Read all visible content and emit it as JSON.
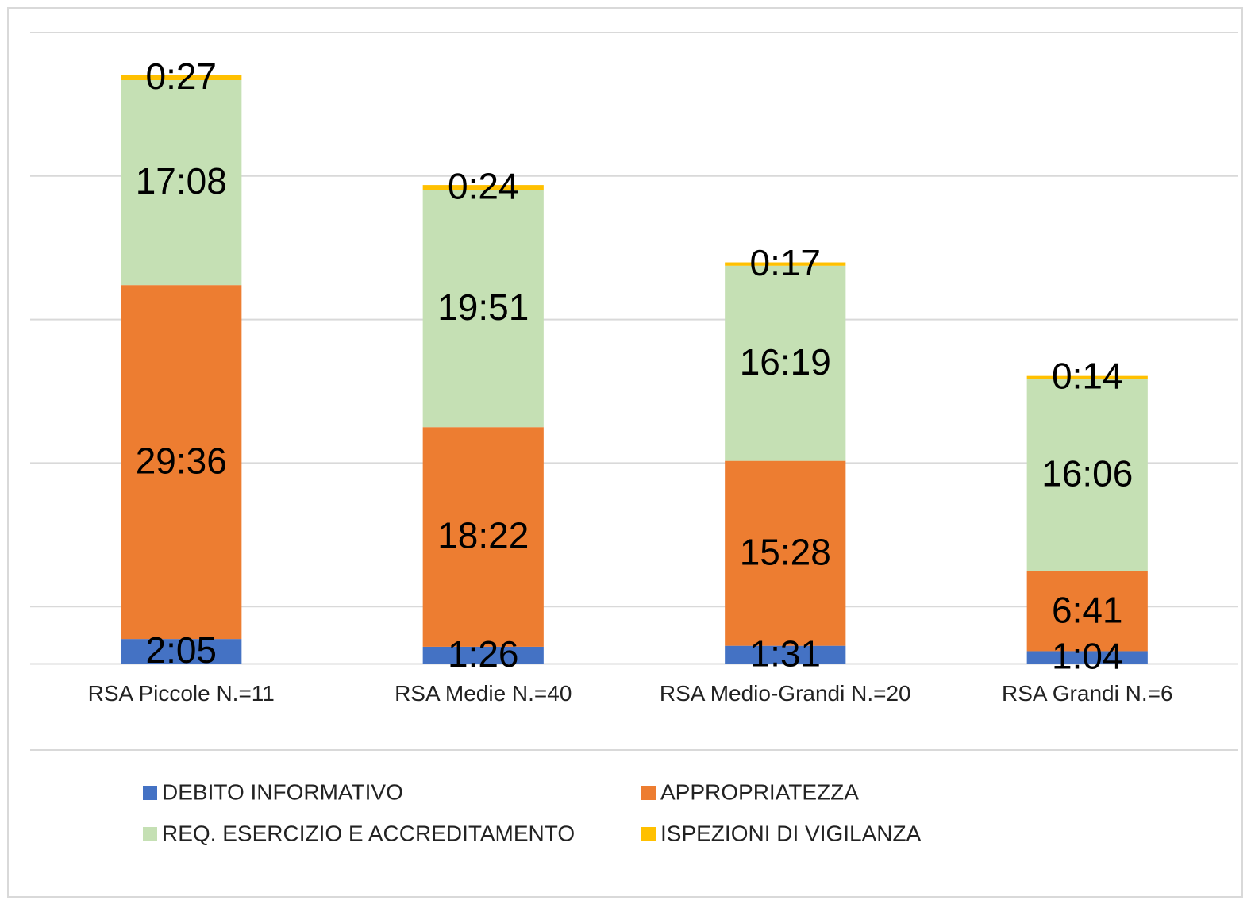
{
  "chart_data": {
    "type": "bar",
    "stacked": true,
    "categories": [
      "RSA Piccole N.=11",
      "RSA Medie N.=40",
      "RSA Medio-Grandi N.=20",
      "RSA Grandi N.=6"
    ],
    "series": [
      {
        "name": "DEBITO INFORMATIVO",
        "color": "#4472c4",
        "values": [
          125,
          86,
          91,
          64
        ],
        "value_labels": [
          "2:05",
          "1:26",
          "1:31",
          "1:04"
        ]
      },
      {
        "name": "APPROPRIATEZZA",
        "color": "#ed7d31",
        "values": [
          1776,
          1102,
          928,
          401
        ],
        "value_labels": [
          "29:36",
          "18:22",
          "15:28",
          "6:41"
        ]
      },
      {
        "name": "REQ. ESERCIZIO E ACCREDITAMENTO",
        "color": "#c5e0b4",
        "values": [
          1028,
          1191,
          979,
          966
        ],
        "value_labels": [
          "17:08",
          "19:51",
          "16:19",
          "16:06"
        ]
      },
      {
        "name": "ISPEZIONI DI VIGILANZA",
        "color": "#ffc000",
        "values": [
          27,
          24,
          17,
          14
        ],
        "value_labels": [
          "0:27",
          "0:24",
          "0:17",
          "0:14"
        ]
      }
    ],
    "ylim": [
      -432,
      3168
    ],
    "yticks": [
      -432,
      288,
      1008,
      1728,
      2448,
      3168
    ],
    "grid": true
  }
}
